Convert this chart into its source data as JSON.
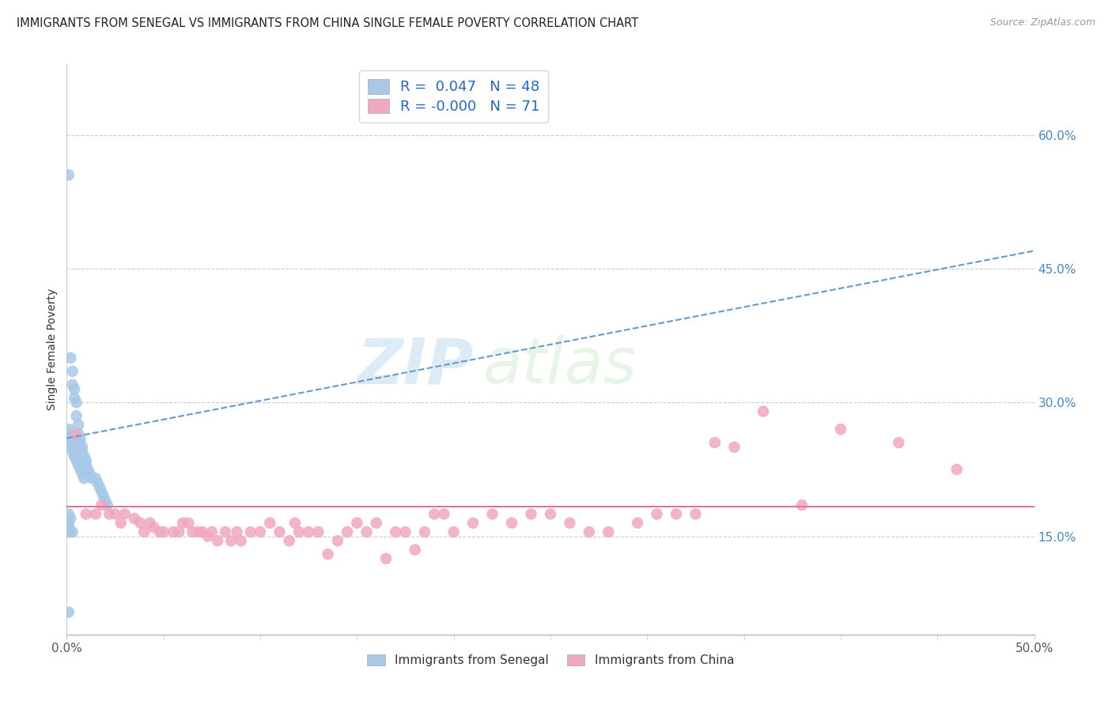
{
  "title": "IMMIGRANTS FROM SENEGAL VS IMMIGRANTS FROM CHINA SINGLE FEMALE POVERTY CORRELATION CHART",
  "source": "Source: ZipAtlas.com",
  "ylabel": "Single Female Poverty",
  "legend_label1": "Immigrants from Senegal",
  "legend_label2": "Immigrants from China",
  "r1": "0.047",
  "n1": "48",
  "r2": "-0.000",
  "n2": "71",
  "xlim": [
    0.0,
    0.5
  ],
  "ylim": [
    0.04,
    0.68
  ],
  "xticks": [
    0.0,
    0.5
  ],
  "xtick_labels": [
    "0.0%",
    "50.0%"
  ],
  "yticks_right": [
    0.15,
    0.3,
    0.45,
    0.6
  ],
  "ytick_labels_right": [
    "15.0%",
    "30.0%",
    "45.0%",
    "60.0%"
  ],
  "color_senegal": "#a8c8e8",
  "color_china": "#f0a8be",
  "color_senegal_line": "#6699cc",
  "color_china_line": "#e87090",
  "watermark": "ZIPatlas",
  "senegal_trend_start_y": 0.26,
  "senegal_trend_end_y": 0.47,
  "china_trend_y": 0.183,
  "senegal_x": [
    0.001,
    0.002,
    0.003,
    0.003,
    0.004,
    0.004,
    0.005,
    0.005,
    0.006,
    0.006,
    0.007,
    0.007,
    0.008,
    0.008,
    0.009,
    0.01,
    0.01,
    0.011,
    0.012,
    0.013,
    0.015,
    0.016,
    0.017,
    0.018,
    0.019,
    0.02,
    0.021,
    0.001,
    0.001,
    0.002,
    0.002,
    0.003,
    0.003,
    0.004,
    0.004,
    0.005,
    0.006,
    0.007,
    0.008,
    0.009,
    0.001,
    0.002,
    0.001,
    0.001,
    0.002,
    0.003,
    0.001,
    0.001
  ],
  "senegal_y": [
    0.555,
    0.35,
    0.335,
    0.32,
    0.315,
    0.305,
    0.3,
    0.285,
    0.275,
    0.265,
    0.26,
    0.255,
    0.25,
    0.245,
    0.24,
    0.235,
    0.23,
    0.225,
    0.22,
    0.215,
    0.215,
    0.21,
    0.205,
    0.2,
    0.195,
    0.19,
    0.185,
    0.27,
    0.265,
    0.26,
    0.255,
    0.25,
    0.245,
    0.24,
    0.24,
    0.235,
    0.23,
    0.225,
    0.22,
    0.215,
    0.175,
    0.17,
    0.165,
    0.16,
    0.155,
    0.155,
    0.155,
    0.065
  ],
  "china_x": [
    0.005,
    0.01,
    0.015,
    0.018,
    0.022,
    0.025,
    0.028,
    0.03,
    0.035,
    0.038,
    0.04,
    0.043,
    0.045,
    0.048,
    0.05,
    0.055,
    0.058,
    0.06,
    0.063,
    0.065,
    0.068,
    0.07,
    0.073,
    0.075,
    0.078,
    0.082,
    0.085,
    0.088,
    0.09,
    0.095,
    0.1,
    0.105,
    0.11,
    0.115,
    0.118,
    0.12,
    0.125,
    0.13,
    0.135,
    0.14,
    0.145,
    0.15,
    0.155,
    0.16,
    0.165,
    0.17,
    0.175,
    0.18,
    0.185,
    0.19,
    0.195,
    0.2,
    0.21,
    0.22,
    0.23,
    0.24,
    0.25,
    0.26,
    0.27,
    0.28,
    0.295,
    0.305,
    0.315,
    0.325,
    0.335,
    0.345,
    0.36,
    0.38,
    0.4,
    0.43,
    0.46
  ],
  "china_y": [
    0.265,
    0.175,
    0.175,
    0.185,
    0.175,
    0.175,
    0.165,
    0.175,
    0.17,
    0.165,
    0.155,
    0.165,
    0.16,
    0.155,
    0.155,
    0.155,
    0.155,
    0.165,
    0.165,
    0.155,
    0.155,
    0.155,
    0.15,
    0.155,
    0.145,
    0.155,
    0.145,
    0.155,
    0.145,
    0.155,
    0.155,
    0.165,
    0.155,
    0.145,
    0.165,
    0.155,
    0.155,
    0.155,
    0.13,
    0.145,
    0.155,
    0.165,
    0.155,
    0.165,
    0.125,
    0.155,
    0.155,
    0.135,
    0.155,
    0.175,
    0.175,
    0.155,
    0.165,
    0.175,
    0.165,
    0.175,
    0.175,
    0.165,
    0.155,
    0.155,
    0.165,
    0.175,
    0.175,
    0.175,
    0.255,
    0.25,
    0.29,
    0.185,
    0.27,
    0.255,
    0.225
  ]
}
